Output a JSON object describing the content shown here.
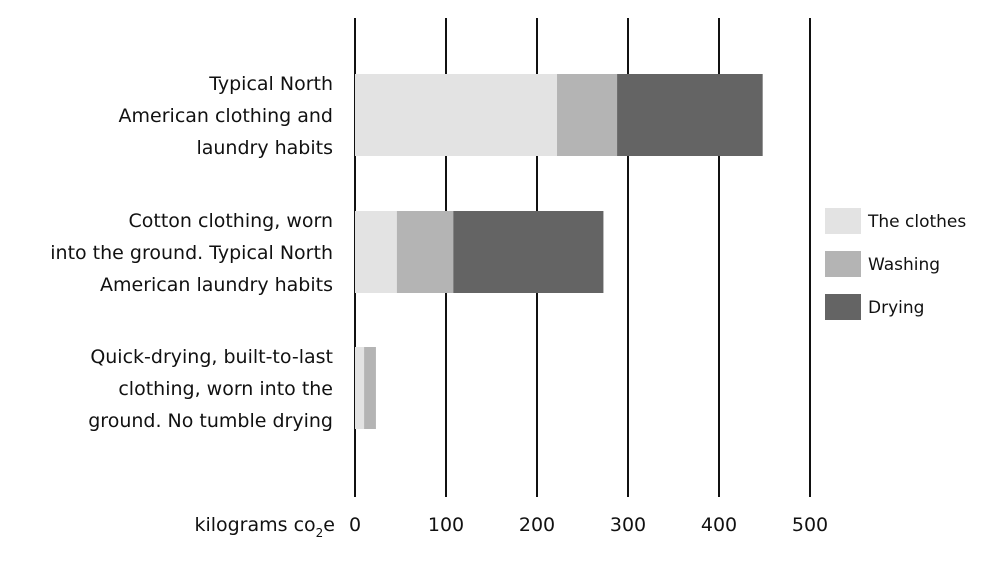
{
  "chart_data": {
    "type": "bar",
    "orientation": "horizontal",
    "stacked": true,
    "categories": [
      [
        "Typical North",
        "American clothing and",
        "laundry habits"
      ],
      [
        "Cotton clothing, worn",
        "into the ground. Typical North",
        "American laundry habits"
      ],
      [
        "Quick-drying, built-to-last",
        "clothing, worn into the",
        "ground. No tumble drying"
      ]
    ],
    "series": [
      {
        "name": "The clothes",
        "color": "#e3e3e3",
        "values": [
          222,
          46,
          10
        ]
      },
      {
        "name": "Washing",
        "color": "#b4b4b4",
        "values": [
          66,
          62,
          13
        ]
      },
      {
        "name": "Drying",
        "color": "#646464",
        "values": [
          160,
          165,
          0
        ]
      }
    ],
    "xlim": [
      0,
      500
    ],
    "xticks": [
      "0",
      "100",
      "200",
      "300",
      "400",
      "500"
    ],
    "xlabel": {
      "text": "kilograms co",
      "sub": "2",
      "tail": "e"
    },
    "grid": "vertical",
    "legend_position": "right"
  }
}
